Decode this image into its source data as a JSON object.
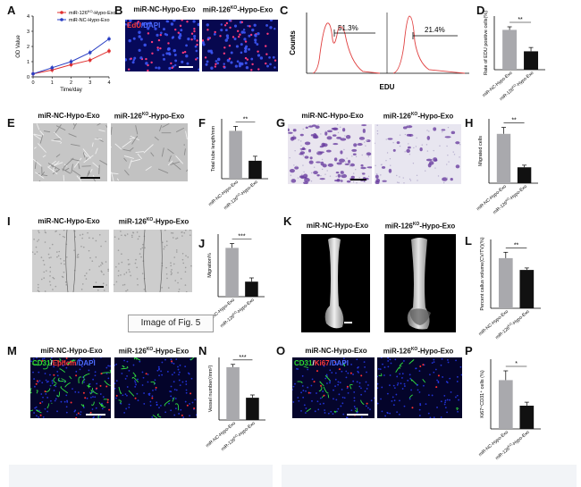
{
  "figure": {
    "tooltip": "Image of Fig. 5",
    "letters": [
      "A",
      "B",
      "C",
      "D",
      "E",
      "F",
      "G",
      "H",
      "I",
      "J",
      "K",
      "L",
      "M",
      "N",
      "O",
      "P"
    ],
    "groups": {
      "nc": "miR-NC-Hypo-Exo",
      "ko_prefix": "miR-126",
      "ko_sup": "KO",
      "ko_suffix": "-Hypo-Exo"
    },
    "colors": {
      "nc_bar": "#a9a9ad",
      "ko_bar": "#111111",
      "red_series": "#e03030",
      "blue_series": "#2a3fc4",
      "histogram": "#e04040"
    }
  },
  "panel_a": {
    "xlabel": "Time/day",
    "ylabel": "OD Value",
    "xticks": [
      "0",
      "1",
      "2",
      "3",
      "4"
    ],
    "yticks": [
      "0",
      "1",
      "2",
      "3",
      "4"
    ],
    "legend": [
      {
        "prefix": "miR-126",
        "sup": "KO",
        "suffix": "-Hypo-Exo"
      },
      {
        "prefix": "miR-NC-Hypo-Exo",
        "sup": "",
        "suffix": ""
      }
    ]
  },
  "panel_b": {
    "stain_a": "EdU",
    "stain_b": "/DAPI"
  },
  "panel_c": {
    "ylabel": "Counts",
    "xlabel": "EDU",
    "gate_left": "51.3%",
    "gate_right": "21.4%"
  },
  "panel_d": {
    "ylabel": "Rate of EDU positive cells(%)",
    "sig": "**"
  },
  "panel_f": {
    "ylabel": "Total tube length/mm",
    "sig": "**"
  },
  "panel_h": {
    "ylabel": "Migrated cells",
    "sig": "**"
  },
  "panel_j": {
    "ylabel": "Migration%",
    "sig": "***"
  },
  "panel_l": {
    "ylabel": "Percent callus volume(CV/TV)(%)",
    "sig": "**"
  },
  "panel_m": {
    "stain_a": "CD31",
    "stain_b": "/",
    "stain_c": "Ephcm",
    "stain_d": "/DAPI"
  },
  "panel_n": {
    "ylabel": "Vessel number(/mm²)",
    "sig": "***"
  },
  "panel_o": {
    "stain_a": "CD31",
    "stain_b": "/",
    "stain_c": "Ki67",
    "stain_d": "/DAPI"
  },
  "panel_p": {
    "ylabel": "Ki67⁺CD31⁺ cells (%)",
    "sig": "*"
  },
  "chart_data": [
    {
      "panel": "A",
      "type": "line",
      "xlabel": "Time/day",
      "ylabel": "OD Value",
      "xlim": [
        0,
        4
      ],
      "ylim": [
        0,
        4
      ],
      "x": [
        0,
        1,
        2,
        3,
        4
      ],
      "series": [
        {
          "name": "miR-126KO-Hypo-Exo",
          "color": "#e03030",
          "values": [
            0.2,
            0.45,
            0.8,
            1.1,
            1.7
          ]
        },
        {
          "name": "miR-NC-Hypo-Exo",
          "color": "#2a3fc4",
          "values": [
            0.2,
            0.6,
            1.0,
            1.6,
            2.5
          ]
        }
      ]
    },
    {
      "panel": "D",
      "type": "bar",
      "ylabel": "Rate of EDU positive cells(%)",
      "ylim": [
        0,
        70
      ],
      "categories": [
        "miR-NC-Hypo-Exo",
        "miR-126KO-Hypo-Exo"
      ],
      "values": [
        52,
        24
      ],
      "errors": [
        4,
        5
      ]
    },
    {
      "panel": "F",
      "type": "bar",
      "ylabel": "Total tube length/mm",
      "ylim": [
        0,
        40
      ],
      "categories": [
        "miR-NC-Hypo-Exo",
        "miR-126KO-Hypo-Exo"
      ],
      "values": [
        32,
        12
      ],
      "errors": [
        3,
        3
      ]
    },
    {
      "panel": "H",
      "type": "bar",
      "ylabel": "Migrated cells",
      "ylim": [
        0,
        150
      ],
      "categories": [
        "miR-NC-Hypo-Exo",
        "miR-126KO-Hypo-Exo"
      ],
      "values": [
        115,
        37
      ],
      "errors": [
        15,
        5
      ]
    },
    {
      "panel": "J",
      "type": "bar",
      "ylabel": "Migration%",
      "ylim": [
        0,
        100
      ],
      "categories": [
        "miR-NC-Hypo-Exo",
        "miR-126KO-Hypo-Exo"
      ],
      "values": [
        78,
        24
      ],
      "errors": [
        7,
        6
      ]
    },
    {
      "panel": "L",
      "type": "bar",
      "ylabel": "Percent callus volume(CV/TV)(%)",
      "ylim": [
        0,
        70
      ],
      "categories": [
        "miR-NC-Hypo-Exo",
        "miR-126KO-Hypo-Exo"
      ],
      "values": [
        51,
        39
      ],
      "errors": [
        6,
        2
      ]
    },
    {
      "panel": "N",
      "type": "bar",
      "ylabel": "Vessel number(/mm²)",
      "ylim": [
        0,
        45
      ],
      "categories": [
        "miR-NC-Hypo-Exo",
        "miR-126KO-Hypo-Exo"
      ],
      "values": [
        38,
        16
      ],
      "errors": [
        2,
        2
      ]
    },
    {
      "panel": "P",
      "type": "bar",
      "ylabel": "Ki67⁺CD31⁺ cells (%)",
      "ylim": [
        0,
        30
      ],
      "categories": [
        "miR-NC-Hypo-Exo",
        "miR-126KO-Hypo-Exo"
      ],
      "values": [
        21,
        10
      ],
      "errors": [
        4,
        1.5
      ]
    }
  ]
}
